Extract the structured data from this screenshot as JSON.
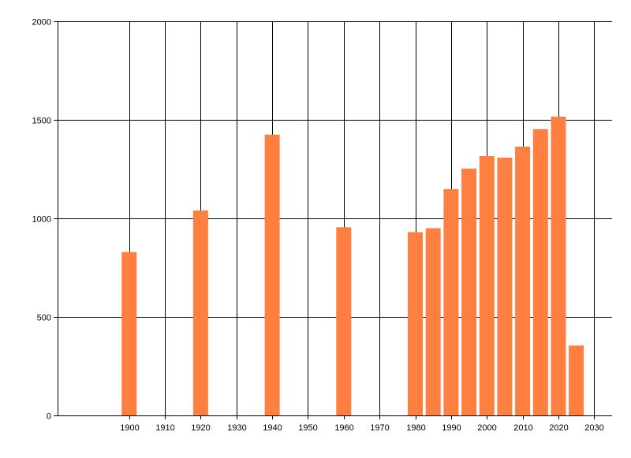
{
  "chart_data": {
    "type": "bar",
    "title": "",
    "xlabel": "",
    "ylabel": "",
    "x": [
      1900,
      1920,
      1940,
      1960,
      1980,
      1985,
      1990,
      1995,
      2000,
      2005,
      2010,
      2015,
      2020,
      2025
    ],
    "values": [
      829,
      1040,
      1425,
      955,
      930,
      950,
      1148,
      1253,
      1316,
      1308,
      1364,
      1453,
      1516,
      355
    ],
    "xlim": [
      1880,
      2035
    ],
    "ylim": [
      0,
      2000
    ],
    "x_ticks": [
      1900,
      1910,
      1920,
      1930,
      1940,
      1950,
      1960,
      1970,
      1980,
      1990,
      2000,
      2010,
      2020,
      2030
    ],
    "y_ticks": [
      0,
      500,
      1000,
      1500,
      2000
    ],
    "grid": true,
    "legend": "none",
    "colors": {
      "bar": "#ff7f41",
      "grid": "#000000",
      "axis": "#000000"
    }
  }
}
